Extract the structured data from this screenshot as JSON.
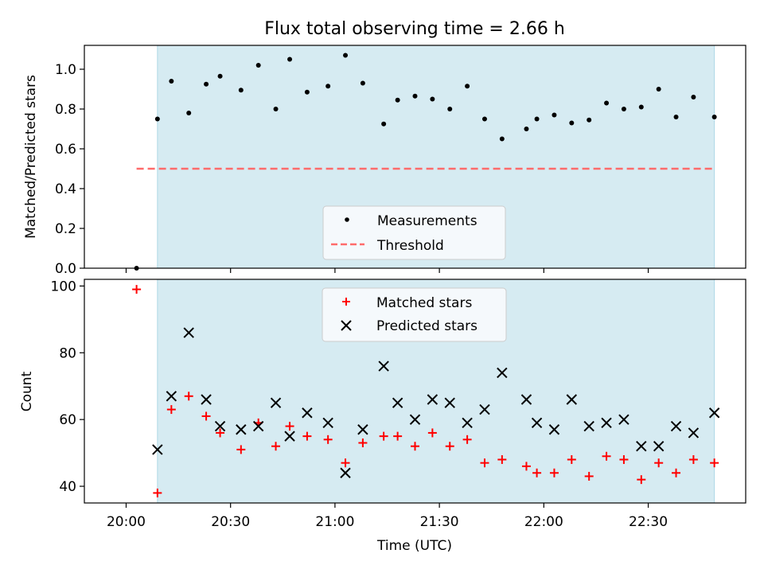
{
  "chart_data": [
    {
      "type": "scatter",
      "title": "Flux total observing time = 2.66 h",
      "ylabel": "Matched/Predicted stars",
      "xlabel": "",
      "ylim": [
        0,
        1.12
      ],
      "yticks": [
        "0.0",
        "0.2",
        "0.4",
        "0.6",
        "0.8",
        "1.0"
      ],
      "shaded_range": [
        "20:09",
        "22:49"
      ],
      "legend_position": "lower center",
      "series": [
        {
          "name": "Measurements",
          "marker": "dot",
          "color": "#000000",
          "x": [
            "20:03",
            "20:09",
            "20:13",
            "20:18",
            "20:23",
            "20:27",
            "20:33",
            "20:38",
            "20:43",
            "20:47",
            "20:52",
            "20:58",
            "21:03",
            "21:08",
            "21:14",
            "21:18",
            "21:23",
            "21:28",
            "21:33",
            "21:38",
            "21:43",
            "21:48",
            "21:55",
            "21:58",
            "22:03",
            "22:08",
            "22:13",
            "22:18",
            "22:23",
            "22:28",
            "22:33",
            "22:38",
            "22:43",
            "22:49"
          ],
          "y": [
            0.0,
            0.75,
            0.94,
            0.78,
            0.925,
            0.965,
            0.895,
            1.02,
            0.8,
            1.05,
            0.885,
            0.915,
            1.07,
            0.93,
            0.725,
            0.845,
            0.865,
            0.85,
            0.8,
            0.915,
            0.75,
            0.65,
            0.7,
            0.75,
            0.77,
            0.73,
            0.745,
            0.83,
            0.8,
            0.81,
            0.9,
            0.76,
            0.86,
            0.76
          ]
        },
        {
          "name": "Threshold",
          "style": "dashed",
          "color": "#ff6b6b",
          "x": [
            "20:03",
            "22:49"
          ],
          "y": [
            0.5,
            0.5
          ]
        }
      ]
    },
    {
      "type": "scatter",
      "title": "",
      "ylabel": "Count",
      "xlabel": "Time (UTC)",
      "ylim": [
        35,
        102
      ],
      "yticks": [
        "40",
        "60",
        "80",
        "100"
      ],
      "xticks": [
        "20:00",
        "20:30",
        "21:00",
        "21:30",
        "22:00",
        "22:30"
      ],
      "shaded_range": [
        "20:09",
        "22:49"
      ],
      "legend_position": "upper center",
      "series": [
        {
          "name": "Matched stars",
          "marker": "plus",
          "color": "#ff0000",
          "x": [
            "20:03",
            "20:09",
            "20:13",
            "20:18",
            "20:23",
            "20:27",
            "20:33",
            "20:38",
            "20:43",
            "20:47",
            "20:52",
            "20:58",
            "21:03",
            "21:08",
            "21:14",
            "21:18",
            "21:23",
            "21:28",
            "21:33",
            "21:38",
            "21:43",
            "21:48",
            "21:55",
            "21:58",
            "22:03",
            "22:08",
            "22:13",
            "22:18",
            "22:23",
            "22:28",
            "22:33",
            "22:38",
            "22:43",
            "22:49"
          ],
          "y": [
            99,
            38,
            63,
            67,
            61,
            56,
            51,
            59,
            52,
            58,
            55,
            54,
            47,
            53,
            55,
            55,
            52,
            56,
            52,
            54,
            47,
            48,
            46,
            44,
            44,
            48,
            43,
            49,
            48,
            42,
            47,
            44,
            48,
            47
          ]
        },
        {
          "name": "Predicted stars",
          "marker": "x",
          "color": "#000000",
          "x": [
            "20:09",
            "20:13",
            "20:18",
            "20:23",
            "20:27",
            "20:33",
            "20:38",
            "20:43",
            "20:47",
            "20:52",
            "20:58",
            "21:03",
            "21:08",
            "21:14",
            "21:18",
            "21:23",
            "21:28",
            "21:33",
            "21:38",
            "21:43",
            "21:48",
            "21:55",
            "21:58",
            "22:03",
            "22:08",
            "22:13",
            "22:18",
            "22:23",
            "22:28",
            "22:33",
            "22:38",
            "22:43",
            "22:49"
          ],
          "y": [
            51,
            67,
            86,
            66,
            58,
            57,
            58,
            65,
            55,
            62,
            59,
            44,
            57,
            76,
            65,
            60,
            66,
            65,
            59,
            63,
            74,
            66,
            59,
            57,
            66,
            58,
            59,
            60,
            52,
            52,
            58,
            56,
            62
          ]
        }
      ]
    }
  ],
  "style": {
    "shade_color": "#add8e6",
    "shade_opacity": 0.5,
    "legend_face": "#f5f9fc"
  }
}
